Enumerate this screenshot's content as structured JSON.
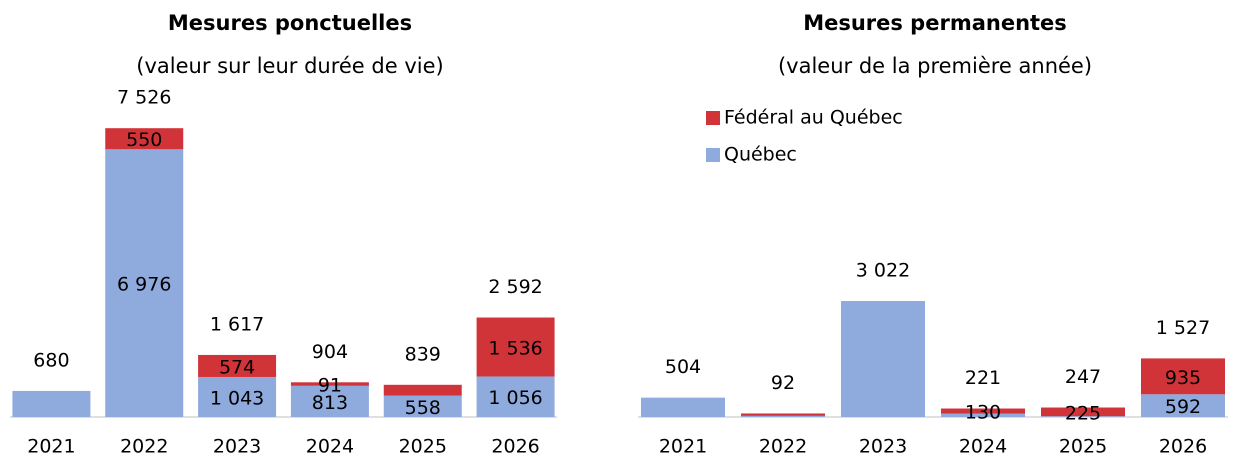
{
  "chart_data": [
    {
      "type": "bar",
      "stacked": true,
      "title": "Mesures ponctuelles",
      "subtitle": "(valeur sur leur durée de vie)",
      "categories": [
        "2021",
        "2022",
        "2023",
        "2024",
        "2025",
        "2026"
      ],
      "series": [
        {
          "color": "#8faadc",
          "values": [
            680,
            6976,
            1043,
            813,
            558,
            1056
          ],
          "value_labels": [
            null,
            "6 976",
            "1 043",
            "813",
            "558",
            "1 056"
          ]
        },
        {
          "color": "#d13438",
          "values": [
            0,
            550,
            574,
            91,
            281,
            1536
          ],
          "value_labels": [
            null,
            "550",
            "574",
            "91",
            null,
            "1 536"
          ]
        }
      ],
      "totals": [
        680,
        7526,
        1617,
        904,
        839,
        2592
      ],
      "total_labels": [
        "680",
        "7 526",
        "1 617",
        "904",
        "839",
        "2 592"
      ],
      "ylim": [
        0,
        8000
      ]
    },
    {
      "type": "bar",
      "stacked": true,
      "title": "Mesures permanentes",
      "subtitle": "(valeur de la première année)",
      "categories": [
        "2021",
        "2022",
        "2023",
        "2024",
        "2025",
        "2026"
      ],
      "series": [
        {
          "name": "Québec",
          "color": "#8faadc",
          "values": [
            504,
            30,
            3022,
            91,
            22,
            592
          ],
          "value_labels": [
            null,
            null,
            null,
            null,
            null,
            "592"
          ]
        },
        {
          "name": "Fédéral au Québec",
          "color": "#d13438",
          "values": [
            0,
            62,
            0,
            130,
            225,
            935
          ],
          "value_labels": [
            null,
            null,
            null,
            "130",
            "225",
            "935"
          ]
        }
      ],
      "totals": [
        504,
        92,
        3022,
        221,
        247,
        1527
      ],
      "total_labels": [
        "504",
        "92",
        "3 022",
        "221",
        "247",
        "1 527"
      ],
      "ylim": [
        0,
        8000
      ],
      "legend": "upper left"
    }
  ]
}
